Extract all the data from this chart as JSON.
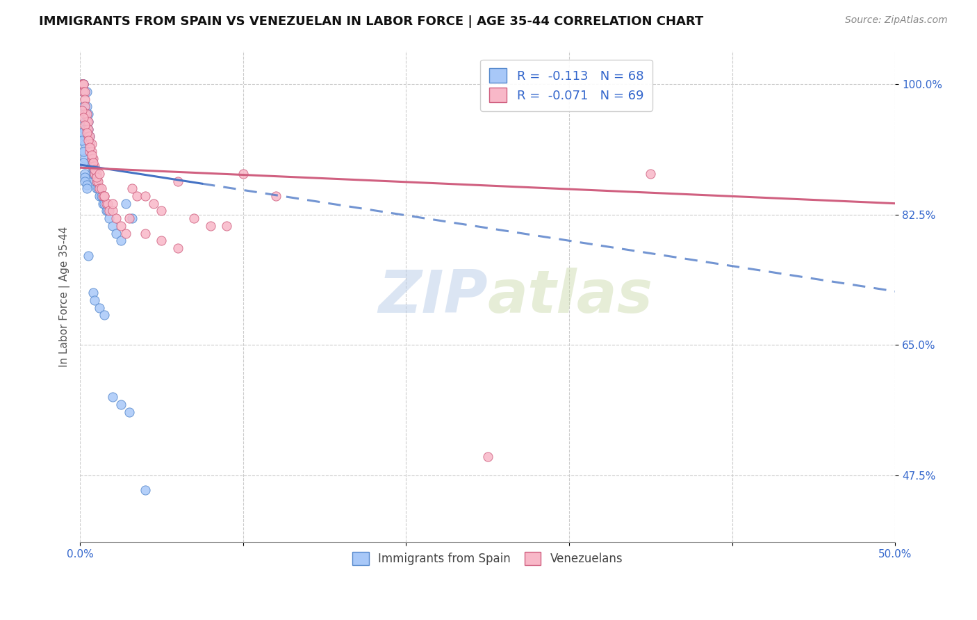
{
  "title": "IMMIGRANTS FROM SPAIN VS VENEZUELAN IN LABOR FORCE | AGE 35-44 CORRELATION CHART",
  "source": "Source: ZipAtlas.com",
  "ylabel": "In Labor Force | Age 35-44",
  "ytick_labels": [
    "100.0%",
    "82.5%",
    "65.0%",
    "47.5%"
  ],
  "ytick_values": [
    1.0,
    0.825,
    0.65,
    0.475
  ],
  "xlim": [
    0.0,
    0.5
  ],
  "ylim": [
    0.385,
    1.045
  ],
  "legend_r_spain": "-0.113",
  "legend_n_spain": "68",
  "legend_r_venezuela": "-0.071",
  "legend_n_venezuela": "69",
  "color_spain": "#a8c8f8",
  "color_spain_edge": "#5588cc",
  "color_venezuela": "#f8b8c8",
  "color_venezuela_edge": "#d06080",
  "color_trendline_spain": "#4472c4",
  "color_trendline_venezuela": "#d06080",
  "watermark_zip": "ZIP",
  "watermark_atlas": "atlas",
  "trendline_spain_x0": 0.0,
  "trendline_spain_y0": 0.892,
  "trendline_spain_x1": 0.5,
  "trendline_spain_y1": 0.722,
  "trendline_spain_solid_end": 0.075,
  "trendline_venezuela_x0": 0.0,
  "trendline_venezuela_y0": 0.888,
  "trendline_venezuela_x1": 0.5,
  "trendline_venezuela_y1": 0.84,
  "spain_x": [
    0.001,
    0.001,
    0.001,
    0.001,
    0.002,
    0.002,
    0.002,
    0.002,
    0.002,
    0.003,
    0.003,
    0.003,
    0.003,
    0.003,
    0.003,
    0.003,
    0.004,
    0.004,
    0.004,
    0.004,
    0.004,
    0.005,
    0.005,
    0.005,
    0.005,
    0.006,
    0.006,
    0.006,
    0.007,
    0.007,
    0.007,
    0.008,
    0.008,
    0.009,
    0.009,
    0.01,
    0.01,
    0.011,
    0.012,
    0.013,
    0.014,
    0.015,
    0.016,
    0.017,
    0.018,
    0.02,
    0.022,
    0.025,
    0.028,
    0.032,
    0.001,
    0.001,
    0.002,
    0.002,
    0.003,
    0.003,
    0.003,
    0.004,
    0.004,
    0.005,
    0.008,
    0.009,
    0.012,
    0.015,
    0.02,
    0.025,
    0.03,
    0.04
  ],
  "spain_y": [
    1.0,
    1.0,
    1.0,
    1.0,
    1.0,
    1.0,
    1.0,
    0.99,
    0.97,
    0.96,
    0.95,
    0.94,
    0.93,
    0.92,
    0.91,
    0.9,
    0.99,
    0.97,
    0.96,
    0.95,
    0.94,
    0.96,
    0.95,
    0.94,
    0.93,
    0.93,
    0.92,
    0.91,
    0.9,
    0.89,
    0.88,
    0.89,
    0.88,
    0.88,
    0.87,
    0.87,
    0.86,
    0.86,
    0.85,
    0.85,
    0.84,
    0.84,
    0.83,
    0.83,
    0.82,
    0.81,
    0.8,
    0.79,
    0.84,
    0.82,
    0.935,
    0.925,
    0.91,
    0.895,
    0.88,
    0.875,
    0.87,
    0.865,
    0.86,
    0.77,
    0.72,
    0.71,
    0.7,
    0.69,
    0.58,
    0.57,
    0.56,
    0.455
  ],
  "venezuela_x": [
    0.001,
    0.001,
    0.002,
    0.002,
    0.002,
    0.003,
    0.003,
    0.003,
    0.003,
    0.004,
    0.004,
    0.004,
    0.005,
    0.005,
    0.005,
    0.006,
    0.006,
    0.006,
    0.007,
    0.007,
    0.007,
    0.008,
    0.008,
    0.009,
    0.009,
    0.01,
    0.01,
    0.011,
    0.012,
    0.013,
    0.014,
    0.015,
    0.016,
    0.017,
    0.018,
    0.02,
    0.022,
    0.025,
    0.028,
    0.032,
    0.035,
    0.04,
    0.045,
    0.05,
    0.06,
    0.07,
    0.08,
    0.09,
    0.1,
    0.12,
    0.001,
    0.002,
    0.003,
    0.004,
    0.005,
    0.006,
    0.007,
    0.008,
    0.009,
    0.01,
    0.012,
    0.015,
    0.02,
    0.03,
    0.04,
    0.05,
    0.06,
    0.25,
    0.35
  ],
  "venezuela_y": [
    1.0,
    1.0,
    1.0,
    1.0,
    0.99,
    0.99,
    0.98,
    0.97,
    0.96,
    0.96,
    0.95,
    0.94,
    0.95,
    0.94,
    0.93,
    0.93,
    0.92,
    0.91,
    0.92,
    0.91,
    0.9,
    0.9,
    0.89,
    0.89,
    0.88,
    0.88,
    0.87,
    0.87,
    0.86,
    0.86,
    0.85,
    0.85,
    0.84,
    0.84,
    0.83,
    0.83,
    0.82,
    0.81,
    0.8,
    0.86,
    0.85,
    0.85,
    0.84,
    0.83,
    0.87,
    0.82,
    0.81,
    0.81,
    0.88,
    0.85,
    0.965,
    0.955,
    0.945,
    0.935,
    0.925,
    0.915,
    0.905,
    0.895,
    0.885,
    0.875,
    0.88,
    0.85,
    0.84,
    0.82,
    0.8,
    0.79,
    0.78,
    0.5,
    0.88
  ]
}
